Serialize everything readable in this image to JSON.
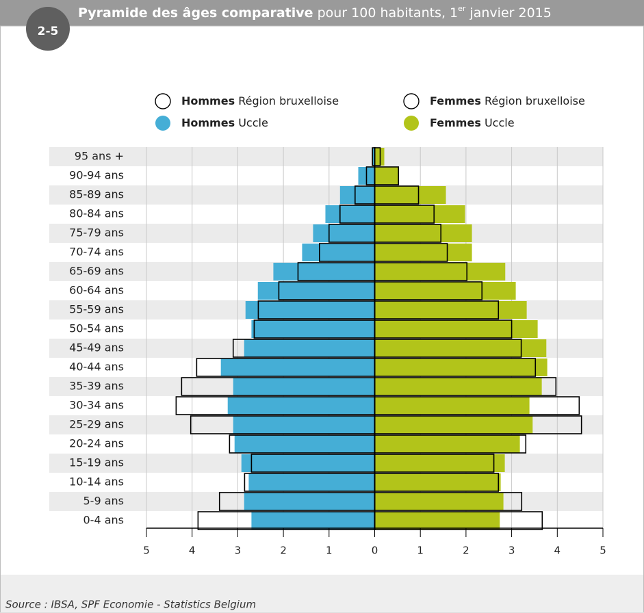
{
  "badge": "2-5",
  "chart_data": {
    "type": "pyramid",
    "title": "Pyramide des âges comparative",
    "title_rest": "pour 100 habitants, 1",
    "title_sup": "er",
    "title_end": "janvier 2015",
    "categories": [
      "95 ans +",
      "90-94 ans",
      "85-89 ans",
      "80-84 ans",
      "75-79 ans",
      "70-74 ans",
      "65-69 ans",
      "60-64 ans",
      "55-59 ans",
      "50-54 ans",
      "45-49 ans",
      "40-44 ans",
      "35-39 ans",
      "30-34 ans",
      "25-29 ans",
      "20-24 ans",
      "15-19 ans",
      "10-14 ans",
      "5-9 ans",
      "0-4 ans"
    ],
    "series": [
      {
        "name": "Hommes",
        "region": "Uccle",
        "side": "left",
        "filled": true,
        "color": "#45aed6",
        "values": [
          0.06,
          0.36,
          0.76,
          1.08,
          1.35,
          1.59,
          2.22,
          2.56,
          2.83,
          2.7,
          2.86,
          3.37,
          3.1,
          3.22,
          3.1,
          3.07,
          2.92,
          2.76,
          2.86,
          2.7
        ]
      },
      {
        "name": "Femmes",
        "region": "Uccle",
        "side": "right",
        "filled": true,
        "color": "#b2c41a",
        "values": [
          0.21,
          0.52,
          1.56,
          1.98,
          2.13,
          2.13,
          2.86,
          3.09,
          3.33,
          3.57,
          3.76,
          3.78,
          3.66,
          3.39,
          3.46,
          3.18,
          2.85,
          2.76,
          2.82,
          2.74
        ]
      },
      {
        "name": "Hommes",
        "region": "Région bruxelloise",
        "side": "left",
        "filled": false,
        "color": "#000000",
        "values": [
          0.05,
          0.18,
          0.43,
          0.76,
          1.0,
          1.21,
          1.68,
          2.1,
          2.55,
          2.64,
          3.1,
          3.9,
          4.23,
          4.35,
          4.03,
          3.18,
          2.7,
          2.85,
          3.4,
          3.87
        ]
      },
      {
        "name": "Femmes",
        "region": "Région bruxelloise",
        "side": "right",
        "filled": false,
        "color": "#000000",
        "values": [
          0.12,
          0.52,
          0.96,
          1.3,
          1.45,
          1.59,
          2.02,
          2.35,
          2.71,
          3.0,
          3.21,
          3.52,
          3.97,
          4.48,
          4.53,
          3.31,
          2.61,
          2.71,
          3.22,
          3.67
        ]
      }
    ],
    "xlim": [
      -5,
      5
    ],
    "xticks": [
      {
        "value": -5,
        "label": "5"
      },
      {
        "value": -4,
        "label": "4"
      },
      {
        "value": -3,
        "label": "3"
      },
      {
        "value": -2,
        "label": "2"
      },
      {
        "value": -1,
        "label": "1"
      },
      0,
      1,
      2,
      3,
      4,
      5
    ],
    "source": "Source : IBSA, SPF Economie - Statistics Belgium"
  }
}
